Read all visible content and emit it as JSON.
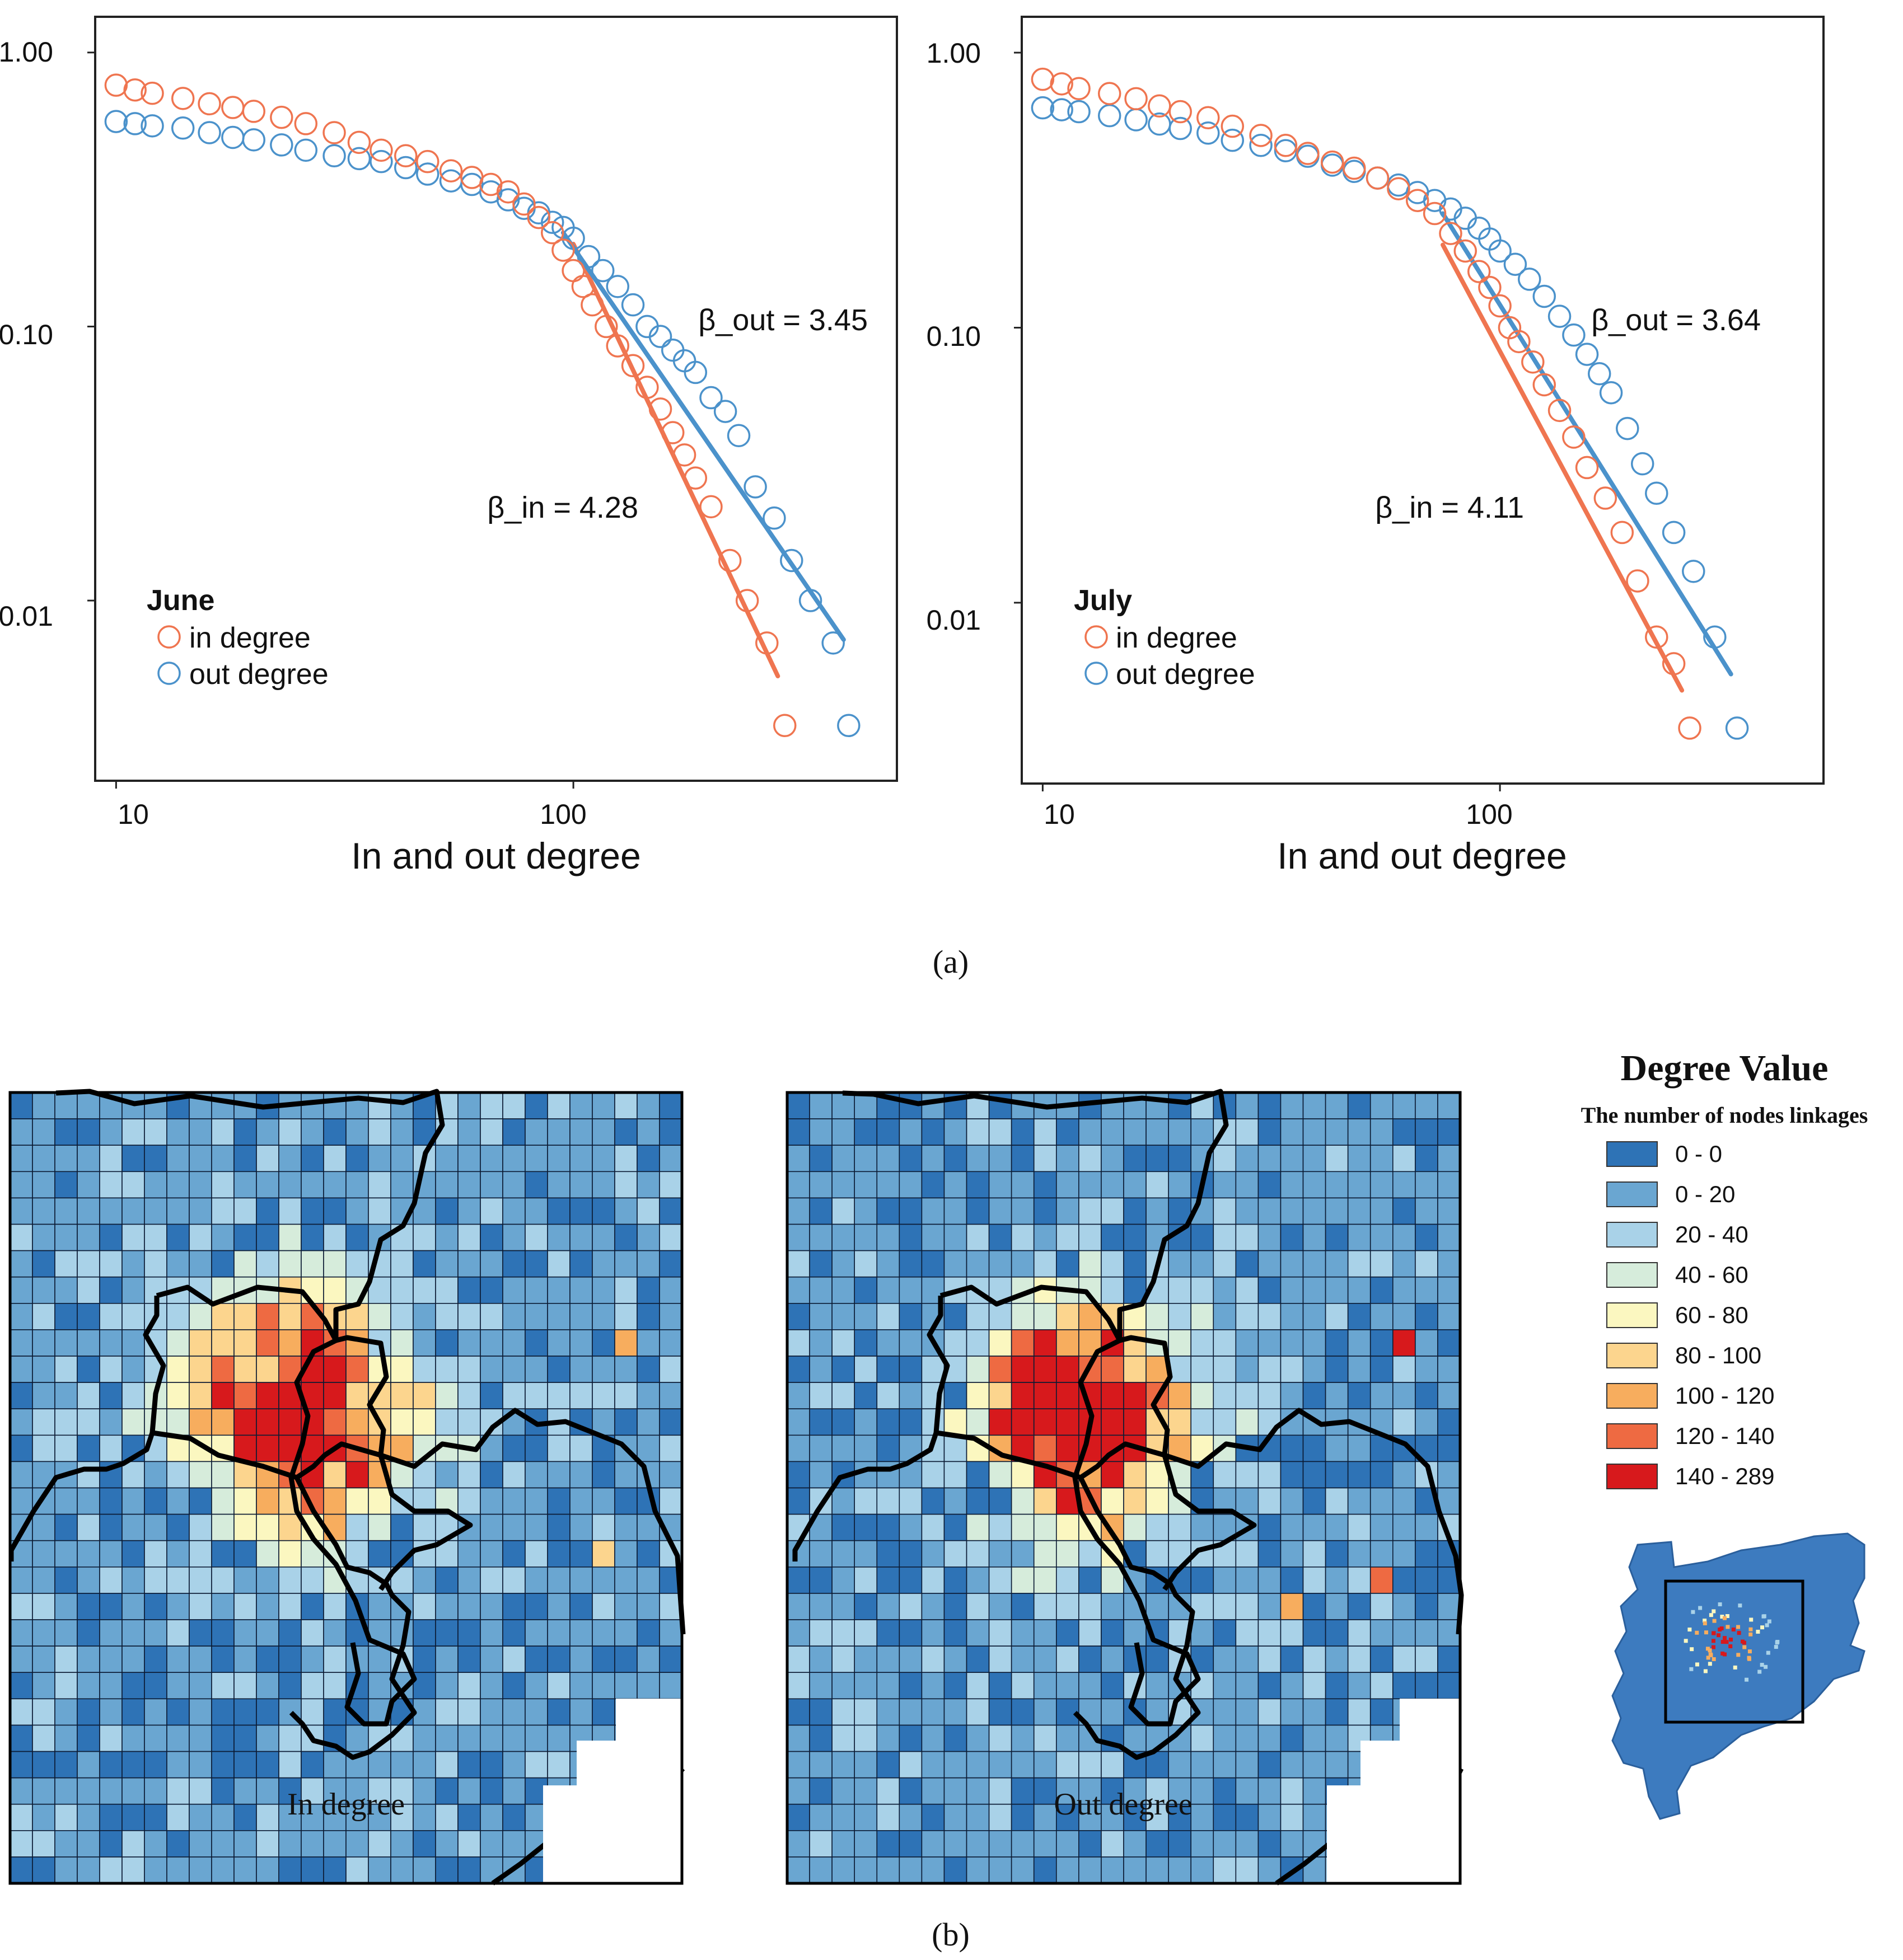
{
  "panel_labels": {
    "a": "(a)",
    "b": "(b)"
  },
  "colors": {
    "in_degree": "#ef7550",
    "out_degree": "#4b92cb",
    "axis": "#222222"
  },
  "chart_data": [
    {
      "type": "scatter",
      "xlabel": "In and out degree",
      "x_scale": "log",
      "y_scale": "log",
      "xlim": [
        9,
        510
      ],
      "ylim": [
        0.0022,
        1.35
      ],
      "x_ticks": [
        10,
        100
      ],
      "x_tick_labels": [
        "10",
        "100"
      ],
      "y_ticks": [
        1.0,
        0.1,
        0.01
      ],
      "y_tick_labels": [
        "1.00",
        "0.10",
        "0.01"
      ],
      "legend": {
        "title": "June",
        "position": "bottom-left",
        "entries": [
          "in degree",
          "out degree"
        ]
      },
      "annotations": [
        {
          "text": "β_out = 3.45",
          "x": 420,
          "y": 0.105
        },
        {
          "text": "β_in = 4.28",
          "x": 170,
          "y": 0.037
        }
      ],
      "series": [
        {
          "name": "in degree",
          "x": [
            10,
            11,
            12,
            14,
            16,
            18,
            20,
            23,
            26,
            30,
            34,
            38,
            43,
            48,
            54,
            60,
            66,
            72,
            78,
            84,
            90,
            95,
            100,
            105,
            110,
            118,
            125,
            135,
            145,
            155,
            165,
            175,
            185,
            200,
            220,
            240,
            265,
            290
          ],
          "y": [
            0.76,
            0.73,
            0.71,
            0.68,
            0.65,
            0.63,
            0.61,
            0.58,
            0.55,
            0.51,
            0.47,
            0.44,
            0.42,
            0.4,
            0.37,
            0.35,
            0.33,
            0.31,
            0.28,
            0.25,
            0.22,
            0.19,
            0.16,
            0.14,
            0.12,
            0.1,
            0.085,
            0.072,
            0.06,
            0.05,
            0.041,
            0.034,
            0.028,
            0.022,
            0.014,
            0.01,
            0.007,
            0.0035
          ],
          "fit": {
            "x": [
              100,
              280
            ],
            "y": [
              0.2,
              0.0053
            ]
          }
        },
        {
          "name": "out degree",
          "x": [
            10,
            11,
            12,
            14,
            16,
            18,
            20,
            23,
            26,
            30,
            34,
            38,
            43,
            48,
            54,
            60,
            66,
            72,
            78,
            84,
            90,
            95,
            100,
            108,
            116,
            125,
            135,
            145,
            155,
            165,
            175,
            185,
            200,
            215,
            230,
            250,
            275,
            300,
            330,
            370,
            400
          ],
          "y": [
            0.56,
            0.55,
            0.54,
            0.53,
            0.51,
            0.49,
            0.48,
            0.46,
            0.44,
            0.42,
            0.41,
            0.4,
            0.38,
            0.36,
            0.34,
            0.33,
            0.31,
            0.29,
            0.27,
            0.26,
            0.24,
            0.23,
            0.21,
            0.18,
            0.16,
            0.14,
            0.12,
            0.1,
            0.092,
            0.082,
            0.075,
            0.068,
            0.055,
            0.049,
            0.04,
            0.026,
            0.02,
            0.014,
            0.01,
            0.007,
            0.0035
          ],
          "fit": {
            "x": [
              95,
              390
            ],
            "y": [
              0.22,
              0.0072
            ]
          }
        }
      ]
    },
    {
      "type": "scatter",
      "xlabel": "In and out degree",
      "x_scale": "log",
      "y_scale": "log",
      "xlim": [
        9,
        510
      ],
      "ylim": [
        0.0022,
        1.35
      ],
      "x_ticks": [
        10,
        100
      ],
      "x_tick_labels": [
        "10",
        "100"
      ],
      "y_ticks": [
        1.0,
        0.1,
        0.01
      ],
      "y_tick_labels": [
        "1.00",
        "0.10",
        "0.01"
      ],
      "legend": {
        "title": "July",
        "position": "bottom-left",
        "entries": [
          "in degree",
          "out degree"
        ]
      },
      "annotations": [
        {
          "text": "β_out = 3.64",
          "x": 245,
          "y": 0.107
        },
        {
          "text": "β_in = 4.11",
          "x": 95,
          "y": 0.038
        }
      ],
      "series": [
        {
          "name": "in degree",
          "x": [
            10,
            11,
            12,
            14,
            16,
            18,
            20,
            23,
            26,
            30,
            34,
            38,
            43,
            48,
            54,
            60,
            66,
            72,
            78,
            84,
            90,
            95,
            100,
            105,
            110,
            118,
            125,
            135,
            145,
            155,
            170,
            185,
            200,
            220,
            240,
            260
          ],
          "y": [
            0.8,
            0.77,
            0.74,
            0.71,
            0.68,
            0.64,
            0.61,
            0.58,
            0.54,
            0.5,
            0.46,
            0.43,
            0.4,
            0.38,
            0.35,
            0.32,
            0.29,
            0.26,
            0.22,
            0.19,
            0.16,
            0.14,
            0.12,
            0.1,
            0.089,
            0.075,
            0.062,
            0.05,
            0.04,
            0.031,
            0.024,
            0.018,
            0.012,
            0.0075,
            0.006,
            0.0035
          ],
          "fit": {
            "x": [
              75,
              250
            ],
            "y": [
              0.2,
              0.0048
            ]
          }
        },
        {
          "name": "out degree",
          "x": [
            10,
            11,
            12,
            14,
            16,
            18,
            20,
            23,
            26,
            30,
            34,
            38,
            43,
            48,
            54,
            60,
            66,
            72,
            78,
            84,
            90,
            95,
            100,
            108,
            116,
            125,
            135,
            145,
            155,
            165,
            175,
            190,
            205,
            220,
            240,
            265,
            295,
            330
          ],
          "y": [
            0.63,
            0.62,
            0.61,
            0.59,
            0.57,
            0.55,
            0.53,
            0.51,
            0.48,
            0.46,
            0.44,
            0.42,
            0.39,
            0.37,
            0.35,
            0.33,
            0.31,
            0.29,
            0.27,
            0.25,
            0.23,
            0.21,
            0.19,
            0.17,
            0.15,
            0.13,
            0.11,
            0.094,
            0.08,
            0.068,
            0.058,
            0.043,
            0.032,
            0.025,
            0.018,
            0.013,
            0.0075,
            0.0035
          ],
          "fit": {
            "x": [
              75,
              320
            ],
            "y": [
              0.26,
              0.0055
            ]
          }
        }
      ]
    },
    {
      "type": "heatmap",
      "grid_size": [
        30,
        30
      ],
      "caption": "In degree",
      "seed": 11,
      "hotspots": [
        {
          "c": 13,
          "r": 12,
          "s": 3.2,
          "a": 150
        },
        {
          "c": 10,
          "r": 10,
          "s": 2.5,
          "a": 60
        }
      ],
      "cross": {
        "c": 13,
        "r": 12,
        "len": 14,
        "a": 35
      },
      "isolated": [
        {
          "c": 27,
          "r": 9,
          "v": 110
        },
        {
          "c": 26,
          "r": 17,
          "v": 100
        }
      ]
    },
    {
      "type": "heatmap",
      "grid_size": [
        30,
        30
      ],
      "caption": "Out degree",
      "seed": 29,
      "hotspots": [
        {
          "c": 13,
          "r": 12,
          "s": 3.0,
          "a": 165
        },
        {
          "c": 11,
          "r": 11,
          "s": 2.2,
          "a": 55
        }
      ],
      "cross": {
        "c": 13,
        "r": 12,
        "len": 13,
        "a": 30
      },
      "isolated": [
        {
          "c": 27,
          "r": 9,
          "v": 200
        },
        {
          "c": 26,
          "r": 18,
          "v": 130
        },
        {
          "c": 22,
          "r": 19,
          "v": 110
        }
      ]
    }
  ],
  "legend_b": {
    "title": "Degree Value",
    "subtitle": "The number of nodes linkages",
    "classes": [
      {
        "label": "0 - 0",
        "color": "#2e73b6",
        "min": 0,
        "max": 0
      },
      {
        "label": "0 - 20",
        "color": "#6aa6d1",
        "min": 1,
        "max": 20
      },
      {
        "label": "20 - 40",
        "color": "#a9d2e8",
        "min": 20,
        "max": 40
      },
      {
        "label": "40 - 60",
        "color": "#d6ecdb",
        "min": 40,
        "max": 60
      },
      {
        "label": "60 - 80",
        "color": "#fbf7c0",
        "min": 60,
        "max": 80
      },
      {
        "label": "80 - 100",
        "color": "#fcd58e",
        "min": 80,
        "max": 100
      },
      {
        "label": "100 - 120",
        "color": "#f7ad5e",
        "min": 100,
        "max": 120
      },
      {
        "label": "120 - 140",
        "color": "#ee6a42",
        "min": 120,
        "max": 140
      },
      {
        "label": "140 - 289",
        "color": "#d7191c",
        "min": 140,
        "max": 289
      }
    ]
  }
}
